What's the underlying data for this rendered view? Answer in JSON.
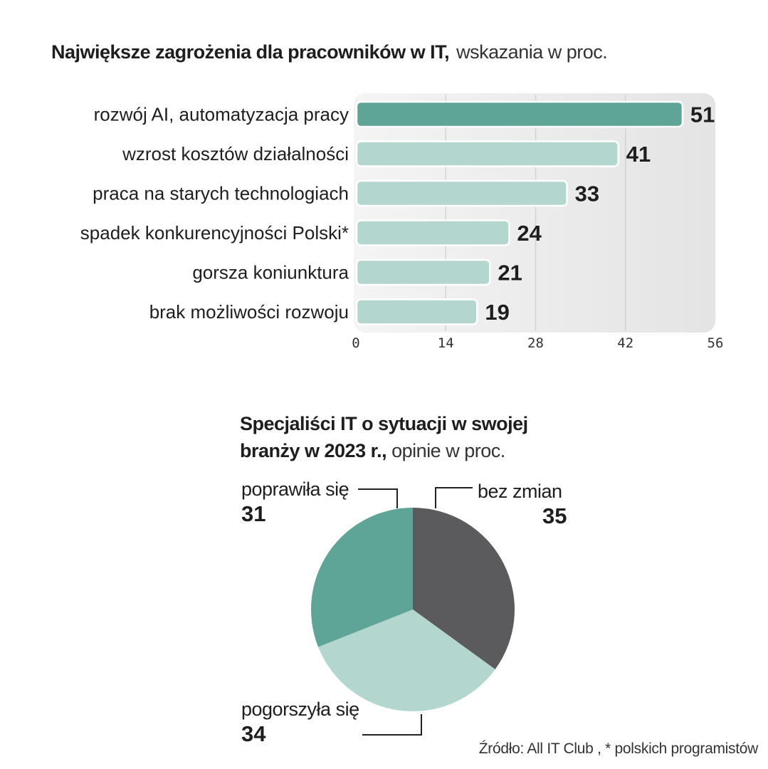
{
  "chart_data": [
    {
      "type": "bar",
      "orientation": "horizontal",
      "title": "Największe zagrożenia dla pracowników w IT,",
      "subtitle": "wskazania w proc.",
      "categories": [
        "rozwój AI, automatyzacja pracy",
        "wzrost kosztów działalności",
        "praca na starych technologiach",
        "spadek konkurencyjności Polski*",
        "gorsza koniunktura",
        "brak możliwości rozwoju"
      ],
      "values": [
        51,
        41,
        33,
        24,
        21,
        19
      ],
      "xlim": [
        0,
        56
      ],
      "xticks": [
        "0",
        "14",
        "28",
        "42",
        "56"
      ],
      "grid": true,
      "colors": {
        "highlight": "#5ea497",
        "bar": "#b3d6cf",
        "panel": "#eaeaea",
        "grid": "#d4d4d4"
      }
    },
    {
      "type": "pie",
      "title": "Specjaliści IT o sytuacji w swojej branży w 2023 r.,",
      "subtitle": "opinie w proc.",
      "slices": [
        {
          "label": "bez zmian",
          "value": 35,
          "color": "#5b5b5d"
        },
        {
          "label": "pogorszyła się",
          "value": 34,
          "color": "#b3d6cf"
        },
        {
          "label": "poprawiła się",
          "value": 31,
          "color": "#5ea497"
        }
      ]
    }
  ],
  "labels": {
    "bar_title_bold": "Największe zagrożenia dla pracowników w IT,",
    "bar_title_light": "wskazania w proc.",
    "pie_title_bold_line1": "Specjaliści IT o sytuacji w swojej",
    "pie_title_bold_line2": "branży w 2023 r.,",
    "pie_title_light": "opinie w proc.",
    "pie_label_improved": "poprawiła się",
    "pie_value_improved": "31",
    "pie_label_same": "bez zmian",
    "pie_value_same": "35",
    "pie_label_worse": "pogorszyła się",
    "pie_value_worse": "34",
    "source": "Źródło: All IT Club , * polskich programistów"
  }
}
